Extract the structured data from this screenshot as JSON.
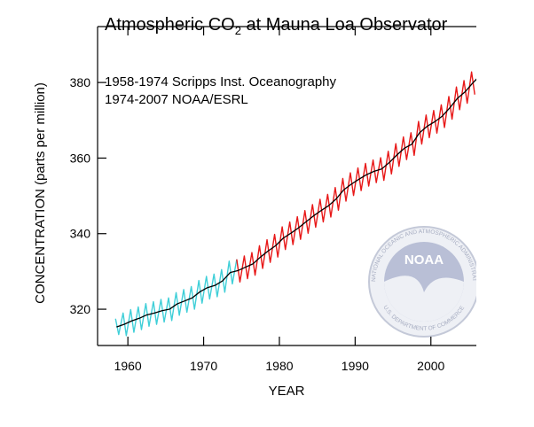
{
  "chart_data": {
    "type": "line",
    "title": [
      "Atmospheric CO",
      "2",
      " at Mauna Loa Observator"
    ],
    "annotations": [
      "1958-1974 Scripps Inst. Oceanography",
      "1974-2007 NOAA/ESRL"
    ],
    "xlabel": "YEAR",
    "ylabel": "CONCENTRATION (parts per million)",
    "logo": {
      "name": "NOAA",
      "top_text": "NATIONAL OCEANIC AND ATMOSPHERIC ADMINISTRATION",
      "bottom_text": "U.S. DEPARTMENT OF COMMERCE"
    },
    "xlim": [
      1956,
      2006
    ],
    "ylim": [
      310.4,
      394.8
    ],
    "xticks": [
      1960,
      1970,
      1980,
      1990,
      2000
    ],
    "yticks": [
      320,
      340,
      360,
      380
    ],
    "series": [
      {
        "color": "#3fcfd8",
        "x": [
          1958.37,
          1958.79,
          1959.37,
          1959.79,
          1960.37,
          1960.79,
          1961.37,
          1961.79,
          1962.37,
          1962.79,
          1963.37,
          1963.79,
          1964.37,
          1964.79,
          1965.37,
          1965.79,
          1966.37,
          1966.79,
          1967.37,
          1967.79,
          1968.37,
          1968.79,
          1969.37,
          1969.79,
          1970.37,
          1970.79,
          1971.37,
          1971.79,
          1972.37,
          1972.79,
          1973.37,
          1973.79,
          1974.37
        ],
        "values": [
          317.5,
          313.3,
          319.0,
          313.0,
          319.9,
          313.9,
          320.6,
          314.6,
          321.5,
          315.5,
          322.0,
          316.0,
          322.6,
          316.6,
          323.0,
          317.0,
          324.4,
          318.4,
          325.2,
          319.2,
          326.0,
          320.0,
          327.6,
          321.6,
          328.7,
          322.7,
          329.3,
          323.3,
          330.5,
          324.5,
          332.7,
          326.7,
          333.2
        ]
      },
      {
        "color": "#e81818",
        "x": [
          1974.37,
          1974.79,
          1975.37,
          1975.79,
          1976.37,
          1976.79,
          1977.37,
          1977.79,
          1978.37,
          1978.79,
          1979.37,
          1979.79,
          1980.37,
          1980.79,
          1981.37,
          1981.79,
          1982.37,
          1982.79,
          1983.37,
          1983.79,
          1984.37,
          1984.79,
          1985.37,
          1985.79,
          1986.37,
          1986.79,
          1987.37,
          1987.79,
          1988.37,
          1988.79,
          1989.37,
          1989.79,
          1990.37,
          1990.79,
          1991.37,
          1991.79,
          1992.37,
          1992.79,
          1993.37,
          1993.79,
          1994.37,
          1994.79,
          1995.37,
          1995.79,
          1996.37,
          1996.79,
          1997.37,
          1997.79,
          1998.37,
          1998.79,
          1999.37,
          1999.79,
          2000.37,
          2000.79,
          2001.37,
          2001.79,
          2002.37,
          2002.79,
          2003.37,
          2003.79,
          2004.37,
          2004.79,
          2005.37,
          2005.79
        ],
        "values": [
          333.2,
          327.2,
          334.1,
          328.1,
          335.0,
          329.0,
          336.8,
          330.8,
          338.4,
          332.4,
          339.8,
          333.8,
          341.8,
          335.8,
          343.1,
          337.1,
          344.5,
          338.5,
          346.1,
          340.1,
          347.7,
          341.7,
          349.1,
          343.1,
          350.4,
          344.4,
          352.2,
          346.2,
          354.6,
          348.6,
          356.1,
          350.1,
          357.4,
          351.4,
          358.6,
          352.6,
          359.5,
          353.5,
          360.1,
          354.1,
          361.8,
          355.8,
          363.8,
          357.8,
          365.6,
          359.6,
          366.7,
          360.7,
          369.7,
          363.7,
          371.4,
          365.4,
          372.6,
          366.6,
          374.1,
          368.1,
          376.3,
          370.3,
          378.8,
          372.8,
          380.5,
          374.5,
          382.8,
          376.8
        ]
      },
      {
        "color": "#000000",
        "x": [
          1958.5,
          1959.5,
          1960.5,
          1961.5,
          1962.5,
          1963.5,
          1964.5,
          1965.5,
          1966.5,
          1967.5,
          1968.5,
          1969.5,
          1970.5,
          1971.5,
          1972.5,
          1973.5,
          1974.5,
          1975.5,
          1976.5,
          1977.5,
          1978.5,
          1979.5,
          1980.5,
          1981.5,
          1982.5,
          1983.5,
          1984.5,
          1985.5,
          1986.5,
          1987.5,
          1988.5,
          1989.5,
          1990.5,
          1991.5,
          1992.5,
          1993.5,
          1994.5,
          1995.5,
          1996.5,
          1997.5,
          1998.5,
          1999.5,
          2000.5,
          2001.5,
          2002.5,
          2003.5,
          2004.5,
          2005.5,
          2006.5
        ],
        "values": [
          315.3,
          316.0,
          316.9,
          317.6,
          318.5,
          319.0,
          319.6,
          320.0,
          321.4,
          322.2,
          323.0,
          324.6,
          325.7,
          326.3,
          327.5,
          329.7,
          330.2,
          331.1,
          332.0,
          333.8,
          335.4,
          336.8,
          338.8,
          340.1,
          341.5,
          343.1,
          344.7,
          346.1,
          347.4,
          349.2,
          351.6,
          353.1,
          354.4,
          355.6,
          356.5,
          357.1,
          358.8,
          360.8,
          362.6,
          363.7,
          366.7,
          368.4,
          369.6,
          371.1,
          373.3,
          375.8,
          377.5,
          379.8,
          381.9
        ]
      }
    ]
  }
}
